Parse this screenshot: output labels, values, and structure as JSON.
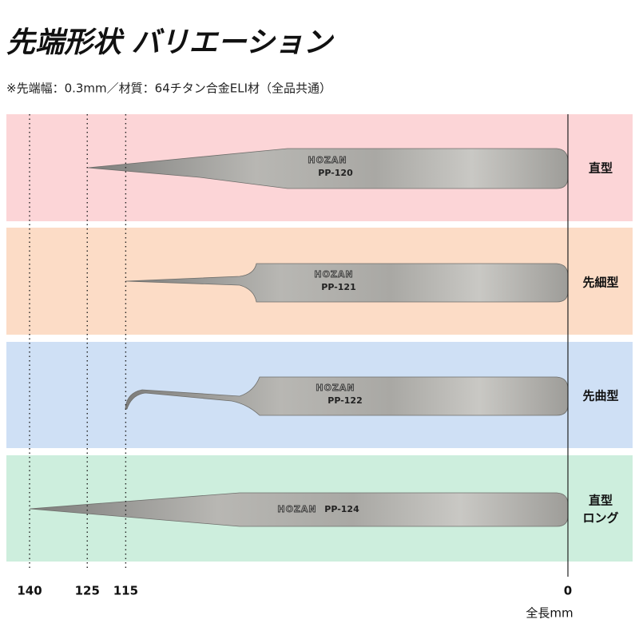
{
  "header": {
    "title": "先端形状 バリエーション",
    "note": "※先端幅：0.3mm／材質：64チタン合金ELI材（全品共通）"
  },
  "rows": [
    {
      "brand": "HOZAN",
      "model": "PP-120",
      "label_lines": [
        "直型"
      ]
    },
    {
      "brand": "HOZAN",
      "model": "PP-121",
      "label_lines": [
        "先細型"
      ]
    },
    {
      "brand": "HOZAN",
      "model": "PP-122",
      "label_lines": [
        "先曲型"
      ]
    },
    {
      "brand": "HOZAN",
      "model": "PP-124",
      "label_lines": [
        "直型",
        "ロング"
      ]
    }
  ],
  "axis": {
    "ticks": [
      140,
      125,
      115,
      0
    ],
    "unit": "全長mm"
  }
}
